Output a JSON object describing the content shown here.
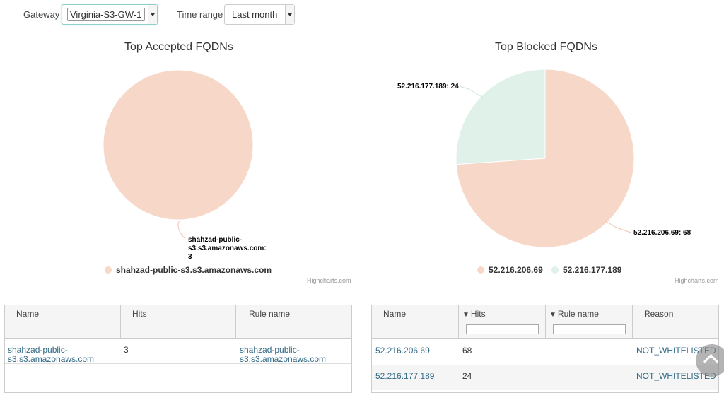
{
  "filters": {
    "gateway_label": "Gateway",
    "gateway_value": "Virginia-S3-GW-1",
    "time_range_label": "Time range",
    "time_range_value": "Last month"
  },
  "chart_data": [
    {
      "type": "pie",
      "title": "Top Accepted FQDNs",
      "slices": [
        {
          "name": "shahzad-public-s3.s3.amazonaws.com",
          "value": 3,
          "color": "#f7d7c8"
        }
      ],
      "data_labels": [
        "shahzad-public-",
        "s3.s3.amazonaws.com:",
        "3"
      ],
      "legend": [
        "shahzad-public-s3.s3.amazonaws.com"
      ],
      "legend_position": "bottom",
      "credits": "Highcharts.com"
    },
    {
      "type": "pie",
      "title": "Top Blocked FQDNs",
      "slices": [
        {
          "name": "52.216.206.69",
          "value": 68,
          "color": "#f7d7c8"
        },
        {
          "name": "52.216.177.189",
          "value": 24,
          "color": "#dff1e9"
        }
      ],
      "data_labels": [
        "52.216.206.69: 68",
        "52.216.177.189: 24"
      ],
      "legend": [
        "52.216.206.69",
        "52.216.177.189"
      ],
      "legend_position": "bottom",
      "credits": "Highcharts.com"
    }
  ],
  "accepted_table": {
    "headers": [
      "Name",
      "Hits",
      "Rule name"
    ],
    "rows": [
      {
        "name_line1": "shahzad-public-",
        "name_line2": "s3.s3.amazonaws.com",
        "hits": "3",
        "rule_line1": "shahzad-public-",
        "rule_line2": "s3.s3.amazonaws.com"
      }
    ]
  },
  "blocked_table": {
    "headers": [
      "Name",
      "Hits",
      "Rule name",
      "Reason"
    ],
    "rows": [
      {
        "name": "52.216.206.69",
        "hits": "68",
        "rule": "",
        "reason": "NOT_WHITELISTED"
      },
      {
        "name": "52.216.177.189",
        "hits": "24",
        "rule": "",
        "reason": "NOT_WHITELISTED"
      }
    ]
  },
  "icons": {
    "filter": "funnel-icon",
    "scroll": "chevron-up-icon"
  }
}
